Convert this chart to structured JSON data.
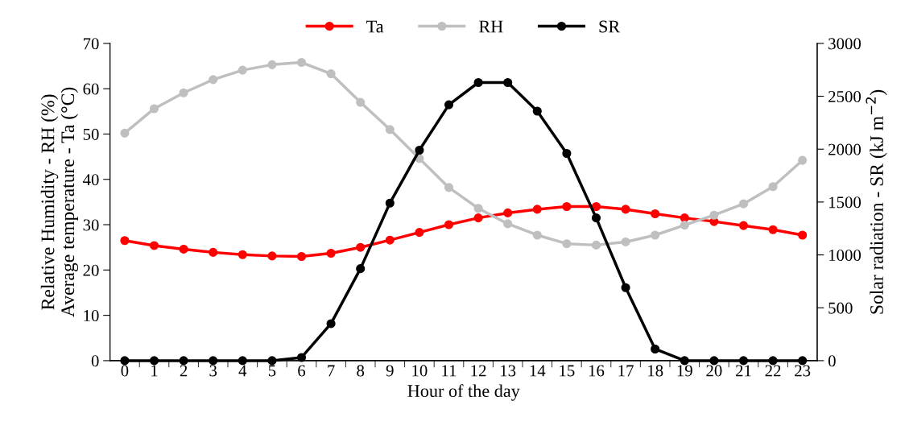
{
  "chart_data": {
    "type": "line",
    "xlabel": "Hour of the day",
    "ylabel": "Relative Humidity - RH (%)\nAverage temperature - Ta (°C)",
    "y2label": "Solar radiation - SR (kJ m$^{−2}$)",
    "categories": [
      "0",
      "1",
      "2",
      "3",
      "4",
      "5",
      "6",
      "7",
      "8",
      "9",
      "10",
      "11",
      "12",
      "13",
      "14",
      "15",
      "16",
      "17",
      "18",
      "19",
      "20",
      "21",
      "22",
      "23"
    ],
    "series": [
      {
        "name": "Ta",
        "color": "#ff0000",
        "values": [
          26.5,
          25.4,
          24.6,
          23.9,
          23.4,
          23.1,
          23.0,
          23.7,
          25.0,
          26.6,
          28.3,
          30.0,
          31.5,
          32.6,
          33.4,
          34.0,
          34.0,
          33.4,
          32.4,
          31.5,
          30.7,
          29.8,
          28.9,
          27.7
        ]
      },
      {
        "name": "RH",
        "color": "#bfbfbf",
        "values": [
          50.2,
          55.6,
          59.1,
          62.0,
          64.1,
          65.3,
          65.8,
          63.3,
          57.0,
          51.0,
          44.6,
          38.2,
          33.6,
          30.2,
          27.7,
          25.8,
          25.5,
          26.2,
          27.7,
          29.9,
          32.1,
          34.6,
          38.4,
          44.2
        ]
      },
      {
        "name": "SR",
        "color": "#000000",
        "axis": "y2",
        "values": [
          0,
          0,
          0,
          0,
          0,
          0,
          30,
          350,
          870,
          1490,
          1990,
          2420,
          2630,
          2630,
          2360,
          1960,
          1350,
          690,
          110,
          0,
          0,
          0,
          0,
          0
        ]
      }
    ],
    "ylim": [
      0,
      70
    ],
    "yticks": [
      0,
      10,
      20,
      30,
      40,
      50,
      60,
      70
    ],
    "y2lim": [
      0,
      3000
    ],
    "y2ticks": [
      0,
      500,
      1000,
      1500,
      2000,
      2500,
      3000
    ],
    "grid": false,
    "legend": "top",
    "marker": "circle",
    "line_style": "solid"
  }
}
